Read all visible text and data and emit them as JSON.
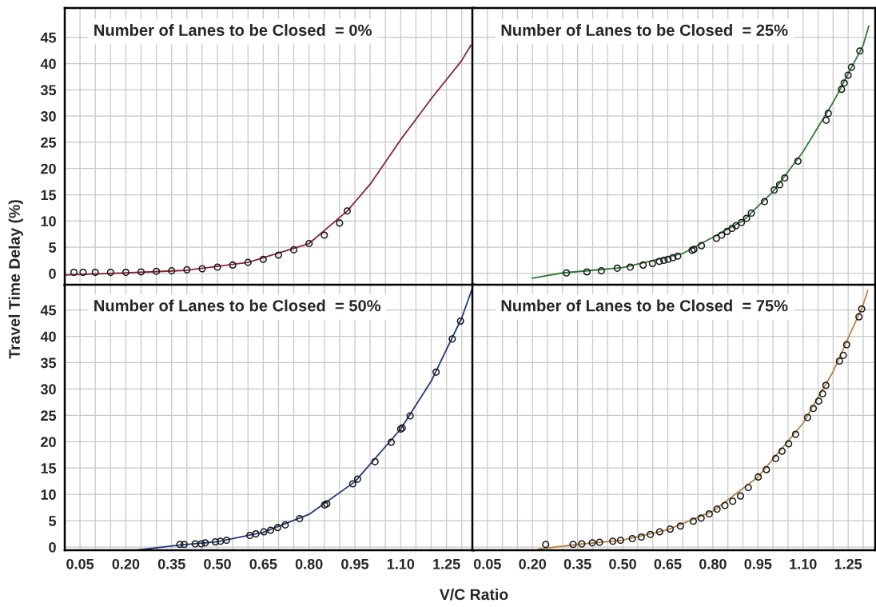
{
  "chart_data": [
    {
      "type": "scatter",
      "title": "Number of Lanes to be Closed  = 0%",
      "ylabel": "Travel Time Delay (%)",
      "xlim": [
        0,
        1.34
      ],
      "ylim": [
        -2.3,
        50.6
      ],
      "grid": true,
      "tick_labels": "y",
      "xticks": [
        {
          "value": 0.05,
          "label": null
        },
        {
          "value": 0.1,
          "label": null
        },
        {
          "value": 0.15,
          "label": null
        },
        {
          "value": 0.2,
          "label": null
        },
        {
          "value": 0.25,
          "label": null
        },
        {
          "value": 0.3,
          "label": null
        },
        {
          "value": 0.35,
          "label": null
        },
        {
          "value": 0.4,
          "label": null
        },
        {
          "value": 0.45,
          "label": null
        },
        {
          "value": 0.5,
          "label": null
        },
        {
          "value": 0.55,
          "label": null
        },
        {
          "value": 0.6,
          "label": null
        },
        {
          "value": 0.65,
          "label": null
        },
        {
          "value": 0.7,
          "label": null
        },
        {
          "value": 0.75,
          "label": null
        },
        {
          "value": 0.8,
          "label": null
        },
        {
          "value": 0.85,
          "label": null
        },
        {
          "value": 0.9,
          "label": null
        },
        {
          "value": 0.95,
          "label": null
        },
        {
          "value": 1.0,
          "label": null
        },
        {
          "value": 1.05,
          "label": null
        },
        {
          "value": 1.1,
          "label": null
        },
        {
          "value": 1.15,
          "label": null
        },
        {
          "value": 1.2,
          "label": null
        },
        {
          "value": 1.25,
          "label": null
        },
        {
          "value": 1.3,
          "label": null
        }
      ],
      "yticks": [
        0,
        5,
        10,
        15,
        20,
        25,
        30,
        35,
        40,
        45
      ],
      "series": [
        {
          "type": "scatter",
          "marker": "circle",
          "color": "#1a1a1a",
          "x": [
            0.03,
            0.06,
            0.1,
            0.15,
            0.2,
            0.25,
            0.3,
            0.35,
            0.4,
            0.45,
            0.5,
            0.55,
            0.6,
            0.65,
            0.7,
            0.75,
            0.8,
            0.85,
            0.9,
            0.925
          ],
          "values": [
            0.2,
            0.2,
            0.2,
            0.2,
            0.2,
            0.3,
            0.4,
            0.5,
            0.7,
            0.9,
            1.2,
            1.6,
            2.1,
            2.7,
            3.5,
            4.5,
            5.7,
            7.3,
            9.6,
            11.9
          ]
        },
        {
          "type": "line",
          "color": "#8b2635",
          "x": [
            0,
            0.2,
            0.4,
            0.6,
            0.8,
            0.925,
            1.0,
            1.1,
            1.2,
            1.3,
            1.33
          ],
          "values": [
            -0.3,
            0.1,
            0.6,
            2.1,
            5.7,
            11.9,
            17,
            25.5,
            33.3,
            40.6,
            43.5
          ]
        }
      ]
    },
    {
      "type": "scatter",
      "title": "Number of Lanes to be Closed  = 25%",
      "xlim": [
        0,
        1.34
      ],
      "ylim": [
        -2.3,
        50.6
      ],
      "grid": true,
      "tick_labels": false,
      "xticks": [
        {
          "value": 0.05,
          "label": null
        },
        {
          "value": 0.1,
          "label": null
        },
        {
          "value": 0.15,
          "label": null
        },
        {
          "value": 0.2,
          "label": null
        },
        {
          "value": 0.25,
          "label": null
        },
        {
          "value": 0.3,
          "label": null
        },
        {
          "value": 0.35,
          "label": null
        },
        {
          "value": 0.4,
          "label": null
        },
        {
          "value": 0.45,
          "label": null
        },
        {
          "value": 0.5,
          "label": null
        },
        {
          "value": 0.55,
          "label": null
        },
        {
          "value": 0.6,
          "label": null
        },
        {
          "value": 0.65,
          "label": null
        },
        {
          "value": 0.7,
          "label": null
        },
        {
          "value": 0.75,
          "label": null
        },
        {
          "value": 0.8,
          "label": null
        },
        {
          "value": 0.85,
          "label": null
        },
        {
          "value": 0.9,
          "label": null
        },
        {
          "value": 0.95,
          "label": null
        },
        {
          "value": 1.0,
          "label": null
        },
        {
          "value": 1.05,
          "label": null
        },
        {
          "value": 1.1,
          "label": null
        },
        {
          "value": 1.15,
          "label": null
        },
        {
          "value": 1.2,
          "label": null
        },
        {
          "value": 1.25,
          "label": null
        },
        {
          "value": 1.3,
          "label": null
        }
      ],
      "yticks": [
        0,
        5,
        10,
        15,
        20,
        25,
        30,
        35,
        40,
        45
      ],
      "series": [
        {
          "type": "scatter",
          "marker": "circle",
          "color": "#1a1a1a",
          "x": [
            0.313,
            0.381,
            0.429,
            0.482,
            0.525,
            0.568,
            0.599,
            0.622,
            0.637,
            0.651,
            0.667,
            0.683,
            0.731,
            0.737,
            0.762,
            0.812,
            0.829,
            0.847,
            0.864,
            0.877,
            0.895,
            0.912,
            0.928,
            0.972,
            1.004,
            1.022,
            1.039,
            1.083,
            1.177,
            1.184,
            1.228,
            1.237,
            1.25,
            1.261,
            1.289
          ],
          "values": [
            0.1,
            0.3,
            0.5,
            1.0,
            1.2,
            1.6,
            1.9,
            2.3,
            2.5,
            2.7,
            3.0,
            3.3,
            4.4,
            4.6,
            5.3,
            6.7,
            7.3,
            8.0,
            8.6,
            9.1,
            9.7,
            10.5,
            11.5,
            13.7,
            15.9,
            16.9,
            18.2,
            21.4,
            29.2,
            30.5,
            35.1,
            36.3,
            37.8,
            39.3,
            42.4
          ]
        },
        {
          "type": "line",
          "color": "#2e7d32",
          "x": [
            0.199,
            0.3,
            0.5,
            0.7,
            0.9,
            1.0,
            1.1,
            1.2,
            1.3,
            1.319
          ],
          "values": [
            -0.9,
            0.1,
            1.1,
            3.8,
            10.0,
            15.6,
            23.2,
            32.6,
            43.5,
            47.2
          ]
        }
      ]
    },
    {
      "type": "scatter",
      "title": "Number of Lanes to be Closed  = 50%",
      "xlabel": "V/C Ratio",
      "xlim": [
        0,
        1.34
      ],
      "ylim": [
        -0.6,
        49.8
      ],
      "grid": true,
      "xticks": [
        {
          "value": 0.05,
          "label": "0.05"
        },
        {
          "value": 0.1,
          "label": null
        },
        {
          "value": 0.15,
          "label": null
        },
        {
          "value": 0.2,
          "label": "0.20"
        },
        {
          "value": 0.25,
          "label": null
        },
        {
          "value": 0.3,
          "label": null
        },
        {
          "value": 0.35,
          "label": "0.35"
        },
        {
          "value": 0.4,
          "label": null
        },
        {
          "value": 0.45,
          "label": null
        },
        {
          "value": 0.5,
          "label": "0.50"
        },
        {
          "value": 0.55,
          "label": null
        },
        {
          "value": 0.6,
          "label": null
        },
        {
          "value": 0.65,
          "label": "0.65"
        },
        {
          "value": 0.7,
          "label": null
        },
        {
          "value": 0.75,
          "label": null
        },
        {
          "value": 0.8,
          "label": "0.80"
        },
        {
          "value": 0.85,
          "label": null
        },
        {
          "value": 0.9,
          "label": null
        },
        {
          "value": 0.95,
          "label": "0.95"
        },
        {
          "value": 1.0,
          "label": null
        },
        {
          "value": 1.05,
          "label": null
        },
        {
          "value": 1.1,
          "label": "1.10"
        },
        {
          "value": 1.15,
          "label": null
        },
        {
          "value": 1.2,
          "label": null
        },
        {
          "value": 1.25,
          "label": "1.25"
        },
        {
          "value": 1.3,
          "label": null
        }
      ],
      "yticks": [
        0,
        5,
        10,
        15,
        20,
        25,
        30,
        35,
        40,
        45
      ],
      "series": [
        {
          "type": "scatter",
          "marker": "circle",
          "color": "#1a1a1a",
          "x": [
            0.377,
            0.391,
            0.427,
            0.447,
            0.46,
            0.493,
            0.51,
            0.53,
            0.606,
            0.626,
            0.652,
            0.674,
            0.697,
            0.722,
            0.769,
            0.851,
            0.858,
            0.943,
            0.959,
            1.016,
            1.069,
            1.1,
            1.105,
            1.131,
            1.216,
            1.269,
            1.296
          ],
          "values": [
            0.5,
            0.5,
            0.6,
            0.6,
            0.8,
            1.0,
            1.1,
            1.3,
            2.2,
            2.5,
            2.9,
            3.2,
            3.7,
            4.2,
            5.4,
            8.0,
            8.2,
            12.0,
            12.9,
            16.2,
            19.9,
            22.4,
            22.6,
            24.9,
            33.2,
            39.5,
            42.9
          ]
        },
        {
          "type": "line",
          "color": "#1f3a7a",
          "x": [
            0.234,
            0.38,
            0.5,
            0.65,
            0.8,
            0.95,
            1.1,
            1.2,
            1.3,
            1.335
          ],
          "values": [
            -0.6,
            0.4,
            1.0,
            2.8,
            6.2,
            12.4,
            22.4,
            31.5,
            43.5,
            49.2
          ]
        }
      ]
    },
    {
      "type": "scatter",
      "title": "Number of Lanes to be Closed  = 75%",
      "xlim": [
        0,
        1.34
      ],
      "ylim": [
        -0.6,
        49.8
      ],
      "grid": true,
      "tick_labels": "x",
      "xticks": [
        {
          "value": 0.05,
          "label": "0.05"
        },
        {
          "value": 0.1,
          "label": null
        },
        {
          "value": 0.15,
          "label": null
        },
        {
          "value": 0.2,
          "label": "0.20"
        },
        {
          "value": 0.25,
          "label": null
        },
        {
          "value": 0.3,
          "label": null
        },
        {
          "value": 0.35,
          "label": "0.35"
        },
        {
          "value": 0.4,
          "label": null
        },
        {
          "value": 0.45,
          "label": null
        },
        {
          "value": 0.5,
          "label": "0.50"
        },
        {
          "value": 0.55,
          "label": null
        },
        {
          "value": 0.6,
          "label": null
        },
        {
          "value": 0.65,
          "label": "0.65"
        },
        {
          "value": 0.7,
          "label": null
        },
        {
          "value": 0.75,
          "label": null
        },
        {
          "value": 0.8,
          "label": "0.80"
        },
        {
          "value": 0.85,
          "label": null
        },
        {
          "value": 0.9,
          "label": null
        },
        {
          "value": 0.95,
          "label": "0.95"
        },
        {
          "value": 1.0,
          "label": null
        },
        {
          "value": 1.05,
          "label": null
        },
        {
          "value": 1.1,
          "label": "1.10"
        },
        {
          "value": 1.15,
          "label": null
        },
        {
          "value": 1.2,
          "label": null
        },
        {
          "value": 1.25,
          "label": "1.25"
        },
        {
          "value": 1.3,
          "label": null
        }
      ],
      "yticks": [
        0,
        5,
        10,
        15,
        20,
        25,
        30,
        35,
        40,
        45
      ],
      "series": [
        {
          "type": "scatter",
          "marker": "circle",
          "color": "#1a1a1a",
          "x": [
            0.244,
            0.335,
            0.364,
            0.399,
            0.423,
            0.467,
            0.493,
            0.532,
            0.562,
            0.592,
            0.623,
            0.658,
            0.692,
            0.735,
            0.761,
            0.788,
            0.814,
            0.84,
            0.866,
            0.892,
            0.918,
            0.951,
            0.978,
            1.009,
            1.03,
            1.052,
            1.075,
            1.115,
            1.134,
            1.152,
            1.165,
            1.176,
            1.221,
            1.234,
            1.245,
            1.286,
            1.295
          ],
          "values": [
            0.5,
            0.5,
            0.6,
            0.8,
            0.9,
            1.1,
            1.3,
            1.6,
            1.9,
            2.4,
            2.9,
            3.4,
            4.0,
            4.9,
            5.5,
            6.3,
            7.2,
            7.9,
            8.7,
            9.7,
            11.3,
            13.3,
            14.7,
            16.8,
            18.2,
            19.6,
            21.4,
            24.6,
            26.3,
            27.7,
            29.1,
            30.7,
            35.3,
            36.4,
            38.4,
            43.7,
            45.2
          ]
        },
        {
          "type": "line",
          "color": "#b5833f",
          "x": [
            0.219,
            0.35,
            0.5,
            0.65,
            0.8,
            0.95,
            1.1,
            1.2,
            1.3,
            1.315
          ],
          "values": [
            -0.4,
            0.5,
            1.3,
            3.3,
            6.8,
            13.3,
            23.5,
            33.3,
            46.0,
            48.7
          ]
        }
      ]
    }
  ]
}
